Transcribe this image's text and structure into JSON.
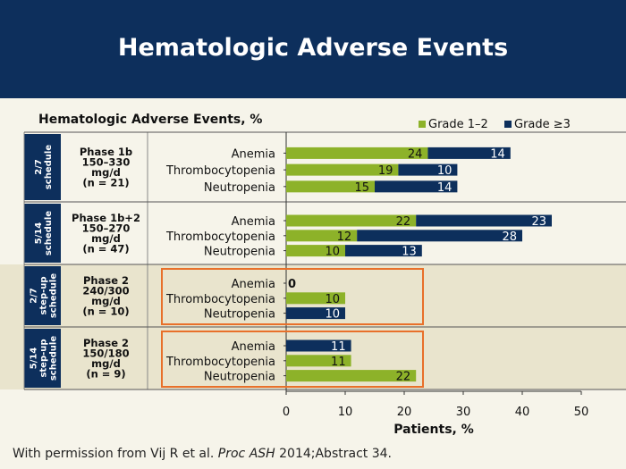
{
  "slide": {
    "title": "Hematologic Adverse Events",
    "footer_prefix": "With permission from Vij R et al. ",
    "footer_journal": "Proc ASH",
    "footer_suffix": " 2014;Abstract 34."
  },
  "colors": {
    "header_bg": "#0d2f5c",
    "grade12": "#8db229",
    "grade3": "#0d2f5c",
    "highlight_box": "#e8702a",
    "shaded_rows": "#e9e4cd",
    "background": "#f6f4ea"
  },
  "chart_data": {
    "type": "bar",
    "stacked": true,
    "orientation": "horizontal",
    "title": "Hematologic Adverse Events, %",
    "xlabel": "Patients, %",
    "xlim": [
      0,
      50
    ],
    "xticks": [
      "0",
      "10",
      "20",
      "30",
      "40",
      "50"
    ],
    "legend": {
      "position": "top-right",
      "entries": [
        "Grade 1–2",
        "Grade ≥3"
      ]
    },
    "series": [
      {
        "name": "Grade 1–2",
        "key": "g12"
      },
      {
        "name": "Grade ≥3",
        "key": "g3"
      }
    ],
    "groups": [
      {
        "schedule": [
          "2/7",
          "schedule"
        ],
        "phase": [
          "Phase 1b",
          "150–330",
          "mg/d",
          "(n = 21)"
        ],
        "highlight": false,
        "shaded": false,
        "rows": [
          {
            "label": "Anemia",
            "g12": 24,
            "g3": 14
          },
          {
            "label": "Thrombocytopenia",
            "g12": 19,
            "g3": 10
          },
          {
            "label": "Neutropenia",
            "g12": 15,
            "g3": 14
          }
        ]
      },
      {
        "schedule": [
          "5/14",
          "schedule"
        ],
        "phase": [
          "Phase 1b+2",
          "150–270",
          "mg/d",
          "(n = 47)"
        ],
        "highlight": false,
        "shaded": false,
        "rows": [
          {
            "label": "Anemia",
            "g12": 22,
            "g3": 23
          },
          {
            "label": "Thrombocytopenia",
            "g12": 12,
            "g3": 28
          },
          {
            "label": "Neutropenia",
            "g12": 10,
            "g3": 13
          }
        ]
      },
      {
        "schedule": [
          "2/7",
          "step-up",
          "schedule"
        ],
        "phase": [
          "Phase 2",
          "240/300",
          "mg/d",
          "(n = 10)"
        ],
        "highlight": true,
        "shaded": true,
        "rows": [
          {
            "label": "Anemia",
            "g12": 0,
            "g3": 0,
            "zero_label": "0"
          },
          {
            "label": "Thrombocytopenia",
            "g12": 10,
            "g3": 0
          },
          {
            "label": "Neutropenia",
            "g12": 0,
            "g3": 10
          }
        ]
      },
      {
        "schedule": [
          "5/14",
          "step-up",
          "schedule"
        ],
        "phase": [
          "Phase 2",
          "150/180",
          "mg/d",
          "(n = 9)"
        ],
        "highlight": true,
        "shaded": true,
        "rows": [
          {
            "label": "Anemia",
            "g12": 0,
            "g3": 11
          },
          {
            "label": "Thrombocytopenia",
            "g12": 11,
            "g3": 0
          },
          {
            "label": "Neutropenia",
            "g12": 22,
            "g3": 0
          }
        ]
      }
    ]
  }
}
